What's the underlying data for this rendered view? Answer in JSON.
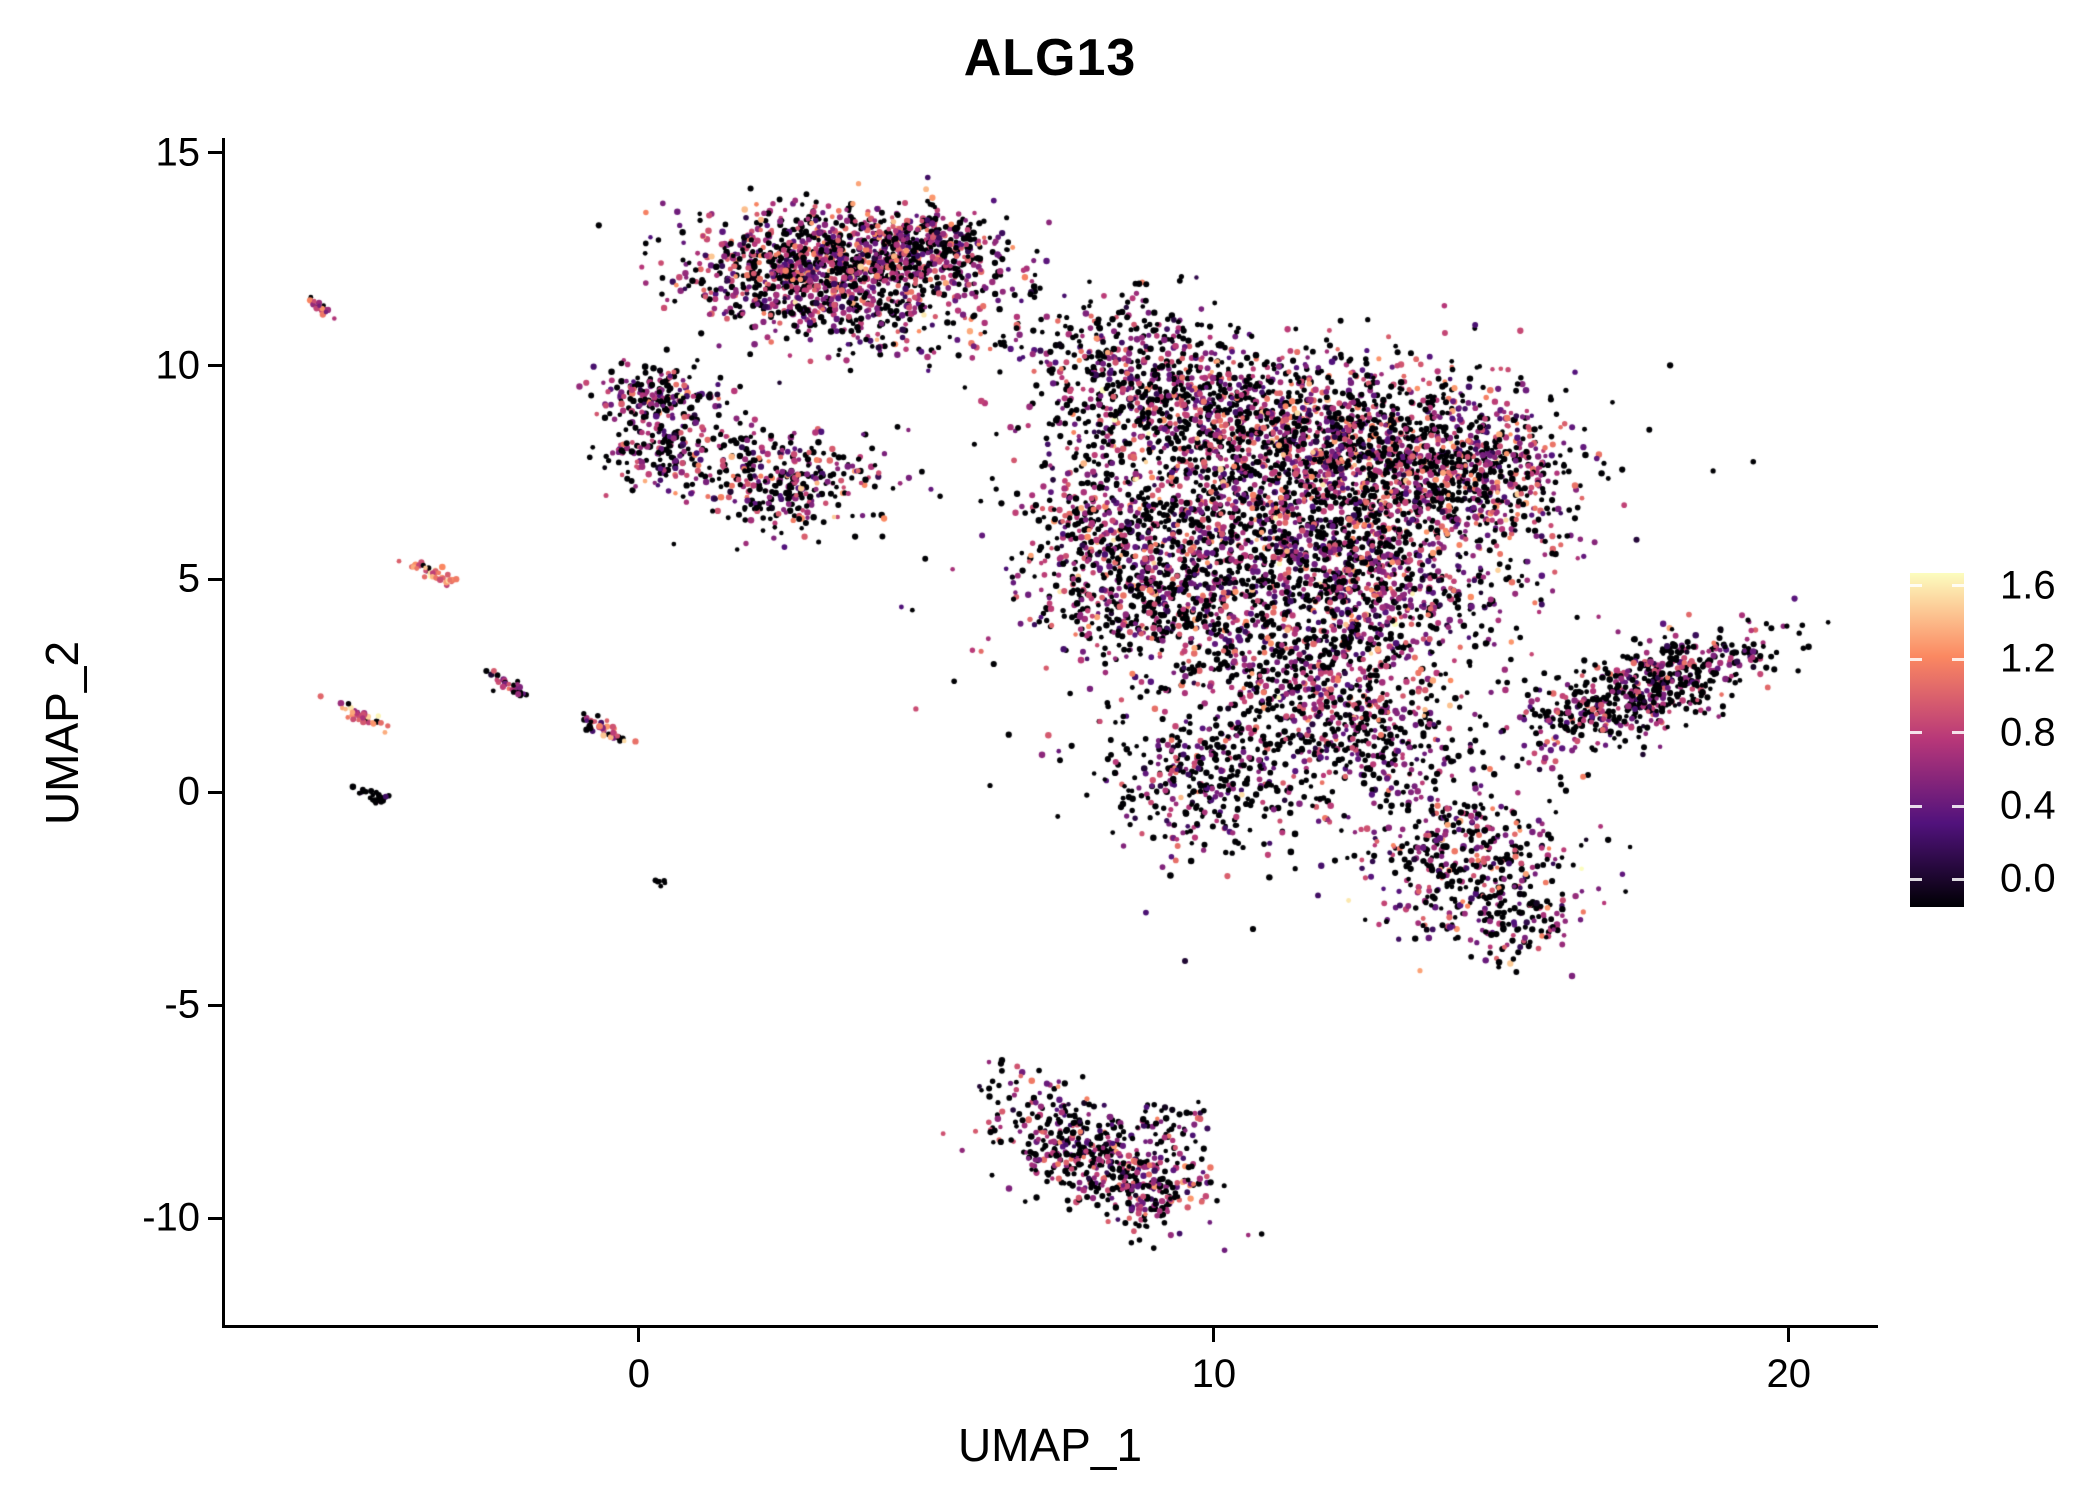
{
  "title": "ALG13",
  "x_axis": {
    "label": "UMAP_1",
    "ticks": [
      {
        "label": "0",
        "value": 0
      },
      {
        "label": "10",
        "value": 10
      },
      {
        "label": "20",
        "value": 20
      }
    ]
  },
  "y_axis": {
    "label": "UMAP_2",
    "ticks": [
      {
        "label": "15",
        "value": 15
      },
      {
        "label": "10",
        "value": 10
      },
      {
        "label": "5",
        "value": 5
      },
      {
        "label": "0",
        "value": 0
      },
      {
        "label": "-5",
        "value": -5
      },
      {
        "label": "-10",
        "value": -10
      }
    ]
  },
  "legend": {
    "ticks": [
      {
        "label": "1.6",
        "value": 1.6
      },
      {
        "label": "1.2",
        "value": 1.2
      },
      {
        "label": "0.8",
        "value": 0.8
      },
      {
        "label": "0.4",
        "value": 0.4
      },
      {
        "label": "0.0",
        "value": 0.0
      }
    ],
    "colormap": [
      "#000004",
      "#51127c",
      "#b73779",
      "#fb8861",
      "#fcfdbf"
    ]
  },
  "chart_data": {
    "type": "scatter",
    "title": "ALG13",
    "xlabel": "UMAP_1",
    "ylabel": "UMAP_2",
    "xlim": [
      -7.2,
      21.5
    ],
    "ylim": [
      -12.5,
      15.3
    ],
    "grid": false,
    "legend_position": "right",
    "color_scale": {
      "name": "magma",
      "domain": [
        0,
        1.6
      ]
    },
    "clusters": [
      {
        "cx": 3.5,
        "cy": 12.4,
        "sx": 1.25,
        "sy": 0.62,
        "angle": -5,
        "n": 1050,
        "p0": 0.4,
        "vm": 0.75,
        "vs": 0.28
      },
      {
        "cx": 5.2,
        "cy": 12.9,
        "sx": 0.7,
        "sy": 0.42,
        "angle": -15,
        "n": 240,
        "p0": 0.45,
        "vm": 0.72,
        "vs": 0.28
      },
      {
        "cx": 2.7,
        "cy": 11.7,
        "sx": 0.85,
        "sy": 0.55,
        "angle": 0,
        "n": 230,
        "p0": 0.4,
        "vm": 0.75,
        "vs": 0.28
      },
      {
        "cx": 4.6,
        "cy": 10.9,
        "sx": 1.1,
        "sy": 0.55,
        "angle": 0,
        "n": 100,
        "p0": 0.5,
        "vm": 0.62,
        "vs": 0.3
      },
      {
        "cx": 6.8,
        "cy": 11.6,
        "sx": 0.85,
        "sy": 0.8,
        "angle": 0,
        "n": 40,
        "p0": 0.55,
        "vm": 0.6,
        "vs": 0.3
      },
      {
        "cx": 0.25,
        "cy": 9.4,
        "sx": 0.45,
        "sy": 0.35,
        "angle": 0,
        "n": 150,
        "p0": 0.45,
        "vm": 0.7,
        "vs": 0.3
      },
      {
        "cx": 0.45,
        "cy": 8.0,
        "sx": 0.5,
        "sy": 0.45,
        "angle": 0,
        "n": 170,
        "p0": 0.45,
        "vm": 0.7,
        "vs": 0.3
      },
      {
        "cx": 1.15,
        "cy": 8.9,
        "sx": 0.5,
        "sy": 0.5,
        "angle": 0,
        "n": 45,
        "p0": 0.5,
        "vm": 0.62,
        "vs": 0.3
      },
      {
        "cx": 2.6,
        "cy": 7.3,
        "sx": 0.8,
        "sy": 0.55,
        "angle": 8,
        "n": 330,
        "p0": 0.42,
        "vm": 0.72,
        "vs": 0.28
      },
      {
        "cx": 7.6,
        "cy": 10.4,
        "sx": 0.9,
        "sy": 0.5,
        "angle": -15,
        "n": 80,
        "p0": 0.5,
        "vm": 0.65,
        "vs": 0.3
      },
      {
        "cx": 9.0,
        "cy": 10.9,
        "sx": 0.8,
        "sy": 0.5,
        "angle": 0,
        "n": 50,
        "p0": 0.55,
        "vm": 0.6,
        "vs": 0.3
      },
      {
        "cx": 9.0,
        "cy": 9.4,
        "sx": 1.0,
        "sy": 0.7,
        "angle": 0,
        "n": 420,
        "p0": 0.45,
        "vm": 0.7,
        "vs": 0.3
      },
      {
        "cx": 11.4,
        "cy": 8.4,
        "sx": 1.6,
        "sy": 1.0,
        "angle": 0,
        "n": 1250,
        "p0": 0.45,
        "vm": 0.75,
        "vs": 0.3
      },
      {
        "cx": 13.6,
        "cy": 7.4,
        "sx": 1.1,
        "sy": 0.9,
        "angle": 0,
        "n": 680,
        "p0": 0.45,
        "vm": 0.75,
        "vs": 0.3
      },
      {
        "cx": 15.0,
        "cy": 7.6,
        "sx": 0.7,
        "sy": 1.05,
        "angle": 12,
        "n": 260,
        "p0": 0.45,
        "vm": 0.75,
        "vs": 0.3
      },
      {
        "cx": 7.9,
        "cy": 6.5,
        "sx": 0.7,
        "sy": 1.0,
        "angle": 0,
        "n": 210,
        "p0": 0.45,
        "vm": 0.72,
        "vs": 0.3
      },
      {
        "cx": 10.2,
        "cy": 5.9,
        "sx": 1.5,
        "sy": 1.1,
        "angle": 0,
        "n": 820,
        "p0": 0.45,
        "vm": 0.72,
        "vs": 0.3
      },
      {
        "cx": 12.8,
        "cy": 5.0,
        "sx": 1.2,
        "sy": 0.95,
        "angle": 0,
        "n": 620,
        "p0": 0.47,
        "vm": 0.72,
        "vs": 0.3
      },
      {
        "cx": 8.8,
        "cy": 4.5,
        "sx": 0.9,
        "sy": 0.8,
        "angle": 0,
        "n": 340,
        "p0": 0.47,
        "vm": 0.7,
        "vs": 0.3
      },
      {
        "cx": 11.4,
        "cy": 3.0,
        "sx": 1.3,
        "sy": 0.85,
        "angle": 0,
        "n": 500,
        "p0": 0.48,
        "vm": 0.7,
        "vs": 0.3
      },
      {
        "cx": 12.6,
        "cy": 1.3,
        "sx": 1.1,
        "sy": 0.8,
        "angle": 0,
        "n": 400,
        "p0": 0.5,
        "vm": 0.68,
        "vs": 0.3
      },
      {
        "cx": 9.8,
        "cy": 0.3,
        "sx": 0.85,
        "sy": 0.9,
        "angle": 0,
        "n": 380,
        "p0": 0.58,
        "vm": 0.62,
        "vs": 0.3
      },
      {
        "cx": 14.3,
        "cy": -1.7,
        "sx": 0.95,
        "sy": 0.9,
        "angle": -30,
        "n": 420,
        "p0": 0.5,
        "vm": 0.68,
        "vs": 0.3
      },
      {
        "cx": 15.3,
        "cy": -2.9,
        "sx": 0.55,
        "sy": 0.55,
        "angle": 0,
        "n": 110,
        "p0": 0.5,
        "vm": 0.65,
        "vs": 0.3
      },
      {
        "cx": 11.3,
        "cy": 4.8,
        "sx": 2.7,
        "sy": 2.7,
        "angle": 0,
        "n": 300,
        "p0": 0.55,
        "vm": 0.6,
        "vs": 0.3
      },
      {
        "cx": 17.5,
        "cy": 2.4,
        "sx": 1.15,
        "sy": 0.5,
        "angle": 30,
        "n": 640,
        "p0": 0.5,
        "vm": 0.7,
        "vs": 0.3
      },
      {
        "cx": 7.8,
        "cy": -8.4,
        "sx": 1.0,
        "sy": 0.55,
        "angle": -40,
        "n": 470,
        "p0": 0.48,
        "vm": 0.7,
        "vs": 0.3
      },
      {
        "cx": 9.0,
        "cy": -9.3,
        "sx": 0.5,
        "sy": 0.45,
        "angle": 0,
        "n": 130,
        "p0": 0.45,
        "vm": 0.75,
        "vs": 0.3
      },
      {
        "cx": 9.3,
        "cy": -7.7,
        "sx": 0.35,
        "sy": 0.3,
        "angle": 0,
        "n": 35,
        "p0": 0.6,
        "vm": 0.6,
        "vs": 0.3
      },
      {
        "cx": -5.55,
        "cy": 11.4,
        "sx": 0.16,
        "sy": 0.05,
        "angle": -35,
        "n": 18,
        "p0": 0.3,
        "vm": 0.95,
        "vs": 0.3
      },
      {
        "cx": -3.6,
        "cy": 5.15,
        "sx": 0.28,
        "sy": 0.07,
        "angle": -35,
        "n": 40,
        "p0": 0.12,
        "vm": 1.1,
        "vs": 0.22
      },
      {
        "cx": -4.85,
        "cy": 1.78,
        "sx": 0.26,
        "sy": 0.07,
        "angle": -35,
        "n": 36,
        "p0": 0.18,
        "vm": 1.05,
        "vs": 0.22
      },
      {
        "cx": -2.3,
        "cy": 2.55,
        "sx": 0.22,
        "sy": 0.07,
        "angle": -35,
        "n": 30,
        "p0": 0.45,
        "vm": 0.75,
        "vs": 0.3
      },
      {
        "cx": -0.65,
        "cy": 1.5,
        "sx": 0.26,
        "sy": 0.08,
        "angle": -35,
        "n": 40,
        "p0": 0.35,
        "vm": 0.95,
        "vs": 0.3
      },
      {
        "cx": -4.6,
        "cy": -0.1,
        "sx": 0.18,
        "sy": 0.06,
        "angle": -35,
        "n": 26,
        "p0": 0.88,
        "vm": 0.35,
        "vs": 0.2
      },
      {
        "cx": 0.35,
        "cy": -2.1,
        "sx": 0.08,
        "sy": 0.05,
        "angle": 0,
        "n": 7,
        "p0": 0.85,
        "vm": 0.3,
        "vs": 0.2
      }
    ]
  }
}
